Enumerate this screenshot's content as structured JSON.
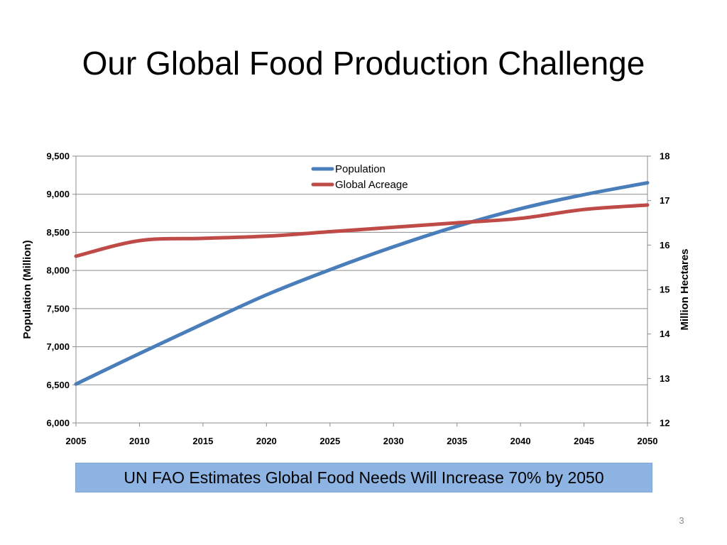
{
  "slide": {
    "title": "Our Global Food Production Challenge",
    "banner_text": "UN FAO Estimates Global Food Needs Will Increase 70% by 2050",
    "page_number": "3"
  },
  "colors": {
    "population": "#4a7ebb",
    "acreage": "#be4b48",
    "banner_bg": "#8db4e2",
    "gridline": "#8c8c8c"
  },
  "chart_data": {
    "type": "line",
    "title": "",
    "xlabel": "",
    "ylabel": "Population (Million)",
    "ylabel_right": "Million Hectares",
    "x": [
      2005,
      2010,
      2015,
      2020,
      2025,
      2030,
      2035,
      2040,
      2045,
      2050
    ],
    "xlim": [
      2005,
      2050
    ],
    "ylim": [
      6000,
      9500
    ],
    "ylim_right": [
      12,
      18
    ],
    "x_ticks": [
      "2005",
      "2010",
      "2015",
      "2020",
      "2025",
      "2030",
      "2035",
      "2040",
      "2045",
      "2050"
    ],
    "y_ticks": [
      "6,000",
      "6,500",
      "7,000",
      "7,500",
      "8,000",
      "8,500",
      "9,000",
      "9,500"
    ],
    "y_ticks_right": [
      "12",
      "13",
      "14",
      "15",
      "16",
      "17",
      "18"
    ],
    "grid": true,
    "legend_position": "top-center",
    "series": [
      {
        "name": "Population",
        "axis": "left",
        "values": [
          6510,
          6910,
          7300,
          7680,
          8010,
          8310,
          8580,
          8810,
          8995,
          9150
        ]
      },
      {
        "name": "Global Acreage",
        "axis": "right",
        "values": [
          15.75,
          16.1,
          16.15,
          16.2,
          16.3,
          16.4,
          16.5,
          16.6,
          16.8,
          16.9
        ]
      }
    ]
  }
}
